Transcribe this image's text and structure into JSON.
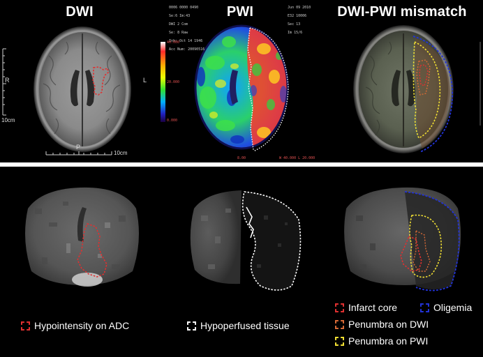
{
  "top_titles": {
    "dwi": "DWI",
    "pwi": "PWI",
    "mismatch": "DWI-PWI mismatch"
  },
  "dwi_scale": {
    "r_label": "R",
    "l_label": "L",
    "p_label": "P",
    "left_scale": "10cm",
    "bottom_scale": "10cm"
  },
  "pwi_header": {
    "line1": "0006 0000 0490",
    "line2": "Se:6 Im:43",
    "line3": "DWI 2 Com",
    "line4": "Se: 8 Raw",
    "line5": "Inb: Oct 14 1946",
    "line6": "Acc Num: 20090516",
    "right1": "Jun 09 2010",
    "right2": "E32 10006",
    "right3": "Sec 13",
    "right4": "Im 15/6",
    "colorbar_top": "40.000",
    "colorbar_mid": "20.000",
    "colorbar_bottom": "0.000",
    "bottom_left": "8.00",
    "bottom_right": "W 40.000 L 20.000"
  },
  "colors": {
    "infarct_core": "#e03030",
    "penumbra_dwi": "#d86a36",
    "penumbra_pwi": "#f2e033",
    "oligemia": "#2233d8",
    "hypoperfused": "#ffffff",
    "hypointensity": "#e03030"
  },
  "legends": {
    "hypointensity": "Hypointensity on ADC",
    "hypoperfused": "Hypoperfused tissue",
    "infarct_core": "Infarct core",
    "oligemia": "Oligemia",
    "penumbra_dwi": "Penumbra on DWI",
    "penumbra_pwi": "Penumbra on PWI"
  }
}
